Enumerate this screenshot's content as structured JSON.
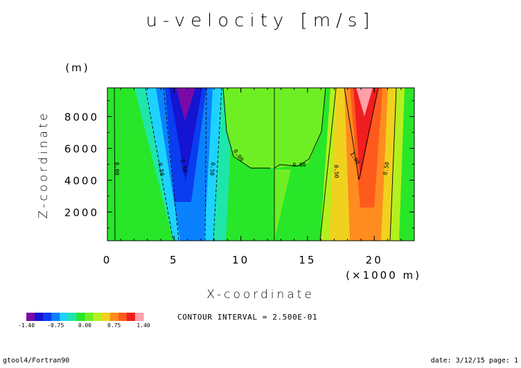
{
  "footer": {
    "left": "gtool4/Fortran90",
    "right": "date: 3/12/15 page: 1"
  },
  "contour_interval": "CONTOUR INTERVAL = 2.500E-01",
  "colorbar": {
    "labels": [
      "-1.40",
      "-0.75",
      "0.00",
      "0.75",
      "1.40"
    ],
    "colors": [
      "#7a0aa8",
      "#1414d2",
      "#0a3cf0",
      "#0a82ff",
      "#1ed2ff",
      "#1ee6aa",
      "#28e628",
      "#6eef23",
      "#b4f01e",
      "#f0d21e",
      "#ff8c1e",
      "#ff5a1e",
      "#f01e1e",
      "#ffa0aa"
    ]
  },
  "chart_data": {
    "type": "heatmap",
    "title": "u-velocity [m/s]",
    "xlabel": "X-coordinate",
    "xunit": "(×1000 m)",
    "ylabel": "Z-coordinate",
    "yunit": "(m)",
    "xlim": [
      0,
      23
    ],
    "ylim": [
      200,
      9800
    ],
    "xticks": [
      "0",
      "5",
      "10",
      "15",
      "20"
    ],
    "yticks": [
      "2000",
      "4000",
      "6000",
      "8000"
    ],
    "contour_labels": [
      "0.00",
      "0.50",
      "-0.50",
      "0.50",
      "0.00",
      "0.00",
      "0.50",
      "1.00",
      "0.50"
    ],
    "bands": [
      {
        "xmin": 0,
        "xmax": 3.5,
        "value": 0.0
      },
      {
        "xmin": 3.5,
        "xmax": 4.5,
        "value": -0.25
      },
      {
        "xmin": 4.5,
        "xmax": 5.0,
        "value": -0.5
      },
      {
        "xmin": 5.0,
        "xmax": 7.0,
        "value": -1.0
      },
      {
        "xmin": 7.0,
        "xmax": 7.8,
        "value": -0.5
      },
      {
        "xmin": 7.8,
        "xmax": 8.9,
        "value": -0.25
      },
      {
        "xmin": 8.9,
        "xmax": 16.3,
        "value": 0.0
      },
      {
        "xmin": 16.3,
        "xmax": 17.0,
        "value": 0.25
      },
      {
        "xmin": 17.0,
        "xmax": 17.6,
        "value": 0.5
      },
      {
        "xmin": 17.6,
        "xmax": 18.3,
        "value": 0.75
      },
      {
        "xmin": 18.3,
        "xmax": 20.0,
        "value": 1.0
      },
      {
        "xmin": 20.0,
        "xmax": 20.8,
        "value": 0.75
      },
      {
        "xmin": 20.8,
        "xmax": 21.7,
        "value": 0.5
      },
      {
        "xmin": 21.7,
        "xmax": 23.0,
        "value": 0.25
      }
    ]
  }
}
